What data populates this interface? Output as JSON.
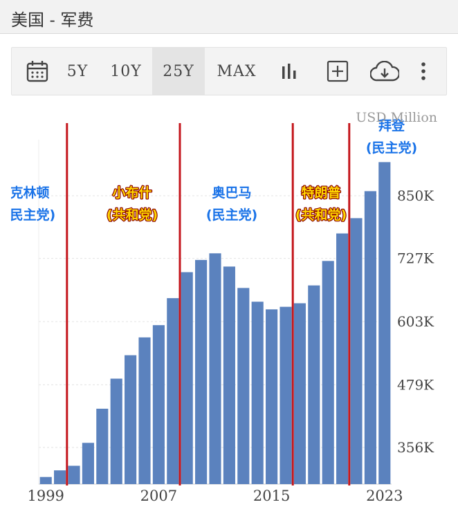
{
  "header": {
    "title": "美国 - 军费"
  },
  "toolbar": {
    "periods": [
      "5Y",
      "10Y",
      "25Y",
      "MAX"
    ],
    "active_period": "25Y",
    "icons": [
      "calendar-icon",
      "bar-chart-icon",
      "add-box-icon",
      "cloud-download-icon",
      "more-vertical-icon"
    ]
  },
  "colors": {
    "bar": "#5b82be",
    "divider": "#c4161c",
    "democrat": "#1a73e8",
    "republican": "#8b0000",
    "republican_fill": "#ffd700"
  },
  "chart_data": {
    "type": "bar",
    "unit_label": "USD Million",
    "x": [
      1999,
      2000,
      2001,
      2002,
      2003,
      2004,
      2005,
      2006,
      2007,
      2008,
      2009,
      2010,
      2011,
      2012,
      2013,
      2014,
      2015,
      2016,
      2017,
      2018,
      2019,
      2020,
      2021,
      2022,
      2023
    ],
    "values": [
      298000,
      311000,
      320000,
      365000,
      432000,
      491000,
      537000,
      572000,
      596000,
      649000,
      700000,
      724000,
      737000,
      711000,
      669000,
      642000,
      627000,
      632000,
      639000,
      674000,
      722000,
      776000,
      806000,
      859000,
      916000
    ],
    "x_tick_labels": [
      "1999",
      "2007",
      "2015",
      "2023"
    ],
    "y_tick_labels": [
      "356K",
      "479K",
      "603K",
      "727K",
      "850K"
    ],
    "y_ticks": [
      356000,
      479000,
      603000,
      727000,
      850000
    ],
    "ylim": [
      284000,
      960000
    ],
    "grid": "horizontal",
    "annotations": [
      {
        "lines": [
          "克林顿",
          "(民主党)"
        ],
        "party": "democrat"
      },
      {
        "lines": [
          "小布什",
          "(共和党)"
        ],
        "party": "republican"
      },
      {
        "lines": [
          "奥巴马",
          "(民主党)"
        ],
        "party": "democrat"
      },
      {
        "lines": [
          "特朗普",
          "(共和党)"
        ],
        "party": "republican"
      },
      {
        "lines": [
          "拜登",
          "(民主党)"
        ],
        "party": "democrat"
      }
    ],
    "term_boundaries": [
      2001,
      2009,
      2017,
      2021
    ]
  }
}
